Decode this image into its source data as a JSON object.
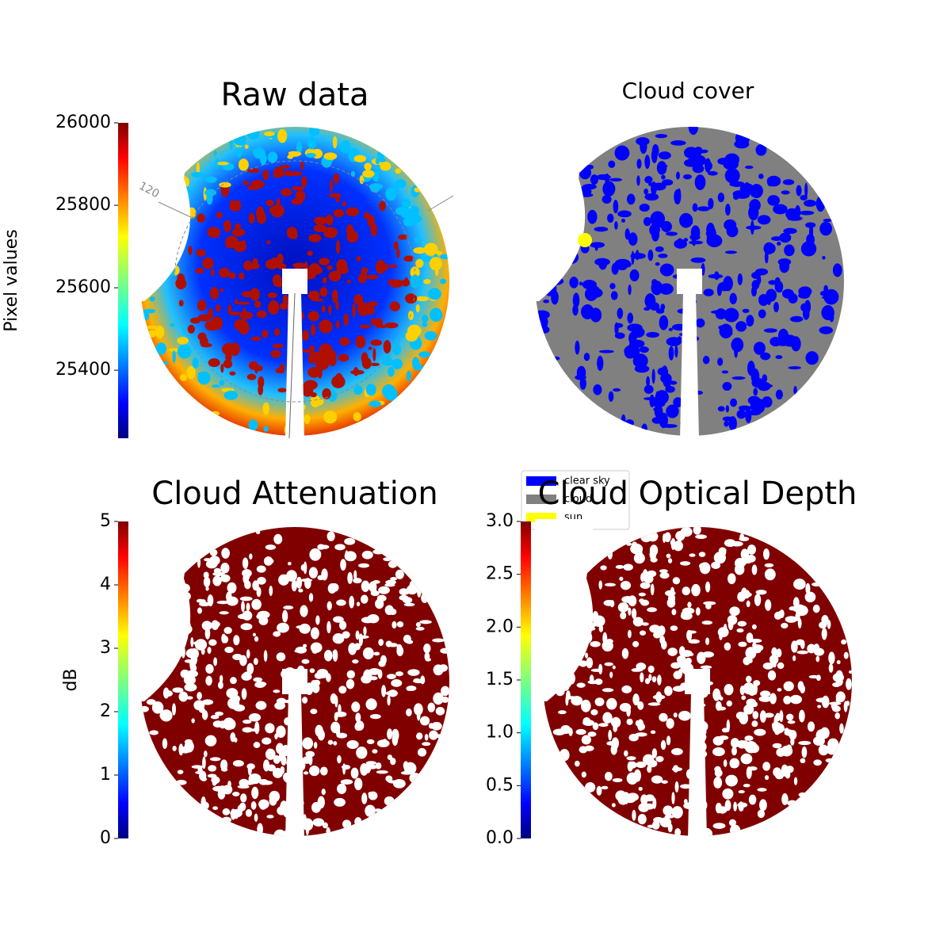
{
  "chart_data": [
    {
      "type": "image",
      "title": "Raw data",
      "colorbar_label": "Pixel values",
      "clim": [
        25235,
        26000
      ],
      "cticks": [
        25400,
        25600,
        25800,
        26000
      ],
      "colormap": "jet",
      "annotations": [
        "120"
      ]
    },
    {
      "type": "image",
      "title": "Cloud cover",
      "legend": [
        {
          "name": "clear sky",
          "color": "#0000ff"
        },
        {
          "name": "cloud",
          "color": "#808080"
        },
        {
          "name": "sun",
          "color": "#ffff00"
        }
      ]
    },
    {
      "type": "image",
      "title": "Cloud Attenuation",
      "colorbar_label": "dB",
      "clim": [
        0,
        5
      ],
      "cticks": [
        0,
        1,
        2,
        3,
        4,
        5
      ],
      "colormap": "jet",
      "color": "#800000"
    },
    {
      "type": "image",
      "title": "Cloud Optical Depth",
      "clim": [
        0,
        3
      ],
      "cticks": [
        {
          "value": 0,
          "label": "0.0"
        },
        {
          "value": 0.5,
          "label": "0.5"
        },
        {
          "value": 1,
          "label": "1.0"
        },
        {
          "value": 1.5,
          "label": "1.5"
        },
        {
          "value": 2,
          "label": "2.0"
        },
        {
          "value": 2.5,
          "label": "2.5"
        },
        {
          "value": 3,
          "label": "3.0"
        }
      ],
      "colormap": "jet",
      "color": "#800000"
    }
  ]
}
